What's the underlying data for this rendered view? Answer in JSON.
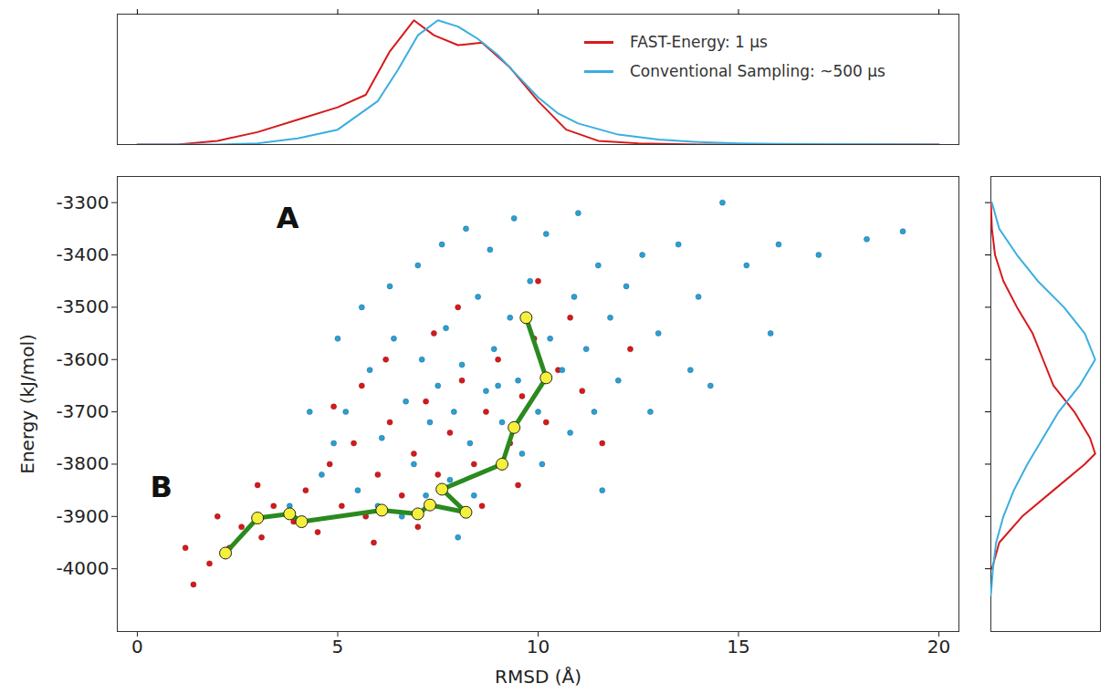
{
  "chart_data": [
    {
      "type": "scatter",
      "x_label": "RMSD (Å)",
      "y_label": "Energy (kJ/mol)",
      "xlim": [
        -0.5,
        20.5
      ],
      "xticks": [
        0,
        5,
        10,
        15,
        20
      ],
      "ylim": [
        -4120,
        -3250
      ],
      "yticks": [
        -4000,
        -3900,
        -3800,
        -3700,
        -3600,
        -3500,
        -3400,
        -3300
      ],
      "grid": false,
      "series": [
        {
          "name": "FAST-Energy: 1 µs",
          "type": "scatter",
          "color": "#d7191c",
          "marker": "circle",
          "x": [
            1.4,
            1.8,
            2.3,
            2.6,
            3.1,
            3.4,
            3.9,
            4.2,
            4.5,
            4.8,
            5.1,
            5.4,
            5.7,
            6.0,
            6.3,
            6.6,
            6.9,
            7.2,
            7.5,
            7.8,
            8.1,
            8.4,
            8.7,
            9.0,
            9.3,
            9.6,
            9.9,
            10.2,
            10.5,
            10.8,
            11.1,
            6.2,
            5.6,
            4.9,
            7.4,
            8.0,
            3.0,
            2.0,
            1.2,
            5.9,
            7.0,
            8.6,
            9.5,
            11.6,
            12.3,
            10.0
          ],
          "values": [
            -4030,
            -3990,
            -3960,
            -3920,
            -3940,
            -3880,
            -3910,
            -3850,
            -3930,
            -3800,
            -3880,
            -3760,
            -3900,
            -3820,
            -3720,
            -3860,
            -3780,
            -3680,
            -3820,
            -3740,
            -3640,
            -3800,
            -3700,
            -3600,
            -3760,
            -3670,
            -3560,
            -3720,
            -3620,
            -3520,
            -3660,
            -3600,
            -3650,
            -3690,
            -3550,
            -3500,
            -3840,
            -3900,
            -3960,
            -3950,
            -3920,
            -3880,
            -3840,
            -3760,
            -3580,
            -3450
          ]
        },
        {
          "name": "Conventional Sampling: ~500 µs",
          "type": "scatter",
          "color": "#2b9fd6",
          "marker": "circle",
          "x": [
            5.2,
            5.8,
            6.1,
            6.4,
            6.7,
            6.9,
            7.1,
            7.3,
            7.5,
            7.7,
            7.9,
            8.1,
            8.3,
            8.5,
            8.7,
            8.9,
            9.1,
            9.3,
            9.5,
            9.8,
            10.0,
            10.3,
            10.6,
            10.9,
            11.2,
            11.5,
            11.8,
            12.2,
            12.6,
            13.0,
            13.5,
            14.0,
            14.6,
            15.2,
            16.0,
            17.0,
            18.2,
            19.1,
            4.6,
            4.9,
            5.5,
            6.0,
            6.6,
            7.2,
            7.8,
            8.4,
            9.0,
            9.6,
            10.1,
            10.8,
            11.4,
            12.0,
            12.8,
            13.8,
            6.3,
            7.0,
            7.6,
            8.2,
            8.8,
            9.4,
            10.2,
            11.0,
            3.8,
            4.3,
            5.0,
            5.6,
            15.8,
            14.3,
            11.6,
            8.0
          ],
          "values": [
            -3700,
            -3620,
            -3750,
            -3560,
            -3680,
            -3800,
            -3600,
            -3720,
            -3650,
            -3540,
            -3700,
            -3610,
            -3760,
            -3480,
            -3660,
            -3580,
            -3720,
            -3520,
            -3640,
            -3450,
            -3700,
            -3560,
            -3620,
            -3480,
            -3580,
            -3420,
            -3520,
            -3460,
            -3400,
            -3550,
            -3380,
            -3480,
            -3300,
            -3420,
            -3380,
            -3400,
            -3370,
            -3355,
            -3820,
            -3760,
            -3850,
            -3880,
            -3900,
            -3860,
            -3830,
            -3860,
            -3650,
            -3780,
            -3800,
            -3740,
            -3700,
            -3640,
            -3700,
            -3620,
            -3460,
            -3420,
            -3380,
            -3350,
            -3390,
            -3330,
            -3360,
            -3320,
            -3880,
            -3700,
            -3560,
            -3500,
            -3550,
            -3650,
            -3850,
            -3940
          ]
        },
        {
          "type": "line",
          "color": "#2a8a1f",
          "marker": "circle",
          "line_style": "solid",
          "x": [
            9.7,
            10.2,
            9.4,
            9.1,
            7.6,
            8.2,
            7.3,
            7.0,
            6.1,
            4.1,
            3.8,
            3.0,
            2.2
          ],
          "values": [
            -3520,
            -3635,
            -3730,
            -3800,
            -3848,
            -3892,
            -3878,
            -3895,
            -3888,
            -3910,
            -3895,
            -3903,
            -3970
          ]
        }
      ],
      "annotations": [
        {
          "text": "A",
          "x": 3.75,
          "y": -3330
        },
        {
          "text": "B",
          "x": 0.6,
          "y": -3845
        }
      ]
    },
    {
      "type": "line",
      "xlim": [
        -0.5,
        20.5
      ],
      "xticks": [
        0,
        5,
        10,
        15,
        20
      ],
      "ylim": [
        0,
        1.05
      ],
      "tick_labels": false,
      "legend": "top-right",
      "series": [
        {
          "name": "FAST-Energy: 1 µs",
          "color": "#d7191c",
          "x": [
            0,
            1,
            2,
            3,
            4,
            5,
            5.7,
            6.3,
            6.9,
            7.4,
            8.0,
            8.6,
            9.3,
            10,
            10.7,
            11.5,
            12.5,
            14,
            16,
            20
          ],
          "values": [
            0,
            0,
            0.03,
            0.1,
            0.2,
            0.3,
            0.4,
            0.75,
            1.0,
            0.88,
            0.8,
            0.82,
            0.62,
            0.35,
            0.12,
            0.03,
            0.01,
            0,
            0,
            0
          ]
        },
        {
          "name": "Conventional Sampling: ~500 µs",
          "color": "#3aaee0",
          "x": [
            0,
            2,
            3,
            4,
            5,
            6,
            6.5,
            7,
            7.5,
            8,
            8.5,
            9,
            9.5,
            10,
            10.5,
            11,
            12,
            13,
            14,
            15,
            16,
            20
          ],
          "values": [
            0,
            0,
            0.01,
            0.05,
            0.12,
            0.35,
            0.6,
            0.88,
            1.0,
            0.95,
            0.85,
            0.72,
            0.55,
            0.38,
            0.25,
            0.17,
            0.08,
            0.04,
            0.02,
            0.01,
            0.005,
            0
          ]
        }
      ]
    },
    {
      "type": "line",
      "orientation": "horizontal",
      "xlim": [
        0,
        1.05
      ],
      "ylim": [
        -4120,
        -3250
      ],
      "yticks": [
        -4000,
        -3900,
        -3800,
        -3700,
        -3600,
        -3500,
        -3400,
        -3300
      ],
      "tick_labels": false,
      "series": [
        {
          "name": "FAST-Energy: 1 µs",
          "color": "#d7191c",
          "y": [
            -4000,
            -3950,
            -3900,
            -3850,
            -3800,
            -3780,
            -3750,
            -3700,
            -3650,
            -3600,
            -3550,
            -3500,
            -3450,
            -3400,
            -3350,
            -3300
          ],
          "values": [
            0.01,
            0.08,
            0.3,
            0.6,
            0.9,
            1.0,
            0.95,
            0.8,
            0.6,
            0.5,
            0.4,
            0.25,
            0.12,
            0.04,
            0.01,
            0
          ]
        },
        {
          "name": "Conventional Sampling: ~500 µs",
          "color": "#3aaee0",
          "y": [
            -4050,
            -4000,
            -3950,
            -3900,
            -3850,
            -3800,
            -3750,
            -3700,
            -3650,
            -3600,
            -3550,
            -3500,
            -3450,
            -3400,
            -3350,
            -3300
          ],
          "values": [
            0,
            0.02,
            0.05,
            0.12,
            0.22,
            0.35,
            0.5,
            0.65,
            0.85,
            1.0,
            0.9,
            0.7,
            0.45,
            0.25,
            0.08,
            0.01
          ]
        }
      ]
    }
  ]
}
